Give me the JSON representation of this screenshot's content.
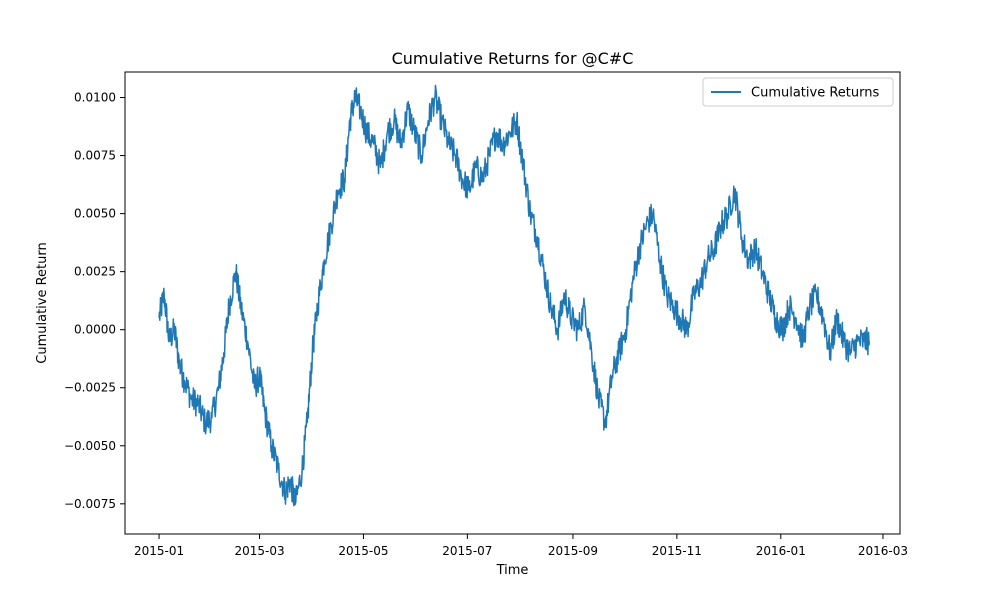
{
  "chart_data": {
    "type": "line",
    "title": "Cumulative Returns for @C#C",
    "xlabel": "Time",
    "ylabel": "Cumulative Return",
    "xlim": [
      "2014-12-12",
      "2016-03-11"
    ],
    "ylim": [
      -0.0088,
      0.0111
    ],
    "grid": false,
    "legend_position": "top-right",
    "x_ticks": [
      "2015-01",
      "2015-03",
      "2015-05",
      "2015-07",
      "2015-09",
      "2015-11",
      "2016-01",
      "2016-03"
    ],
    "y_ticks": [
      -0.0075,
      -0.005,
      -0.0025,
      0.0,
      0.0025,
      0.005,
      0.0075,
      0.01
    ],
    "y_tick_labels": [
      "−0.0075",
      "−0.0050",
      "−0.0025",
      "0.0000",
      "0.0025",
      "0.0050",
      "0.0075",
      "0.0100"
    ],
    "series": [
      {
        "name": "Cumulative Returns",
        "color": "#1f77b4",
        "x": [
          "2015-01-01",
          "2015-01-04",
          "2015-01-07",
          "2015-01-10",
          "2015-01-13",
          "2015-01-16",
          "2015-01-20",
          "2015-01-24",
          "2015-01-28",
          "2015-02-01",
          "2015-02-05",
          "2015-02-08",
          "2015-02-11",
          "2015-02-15",
          "2015-02-18",
          "2015-02-22",
          "2015-02-26",
          "2015-03-01",
          "2015-03-04",
          "2015-03-08",
          "2015-03-12",
          "2015-03-16",
          "2015-03-19",
          "2015-03-22",
          "2015-03-26",
          "2015-03-29",
          "2015-04-01",
          "2015-04-04",
          "2015-04-08",
          "2015-04-12",
          "2015-04-16",
          "2015-04-20",
          "2015-04-23",
          "2015-04-26",
          "2015-04-29",
          "2015-05-03",
          "2015-05-07",
          "2015-05-11",
          "2015-05-15",
          "2015-05-19",
          "2015-05-23",
          "2015-05-27",
          "2015-05-31",
          "2015-06-04",
          "2015-06-08",
          "2015-06-12",
          "2015-06-16",
          "2015-06-20",
          "2015-06-24",
          "2015-06-28",
          "2015-07-02",
          "2015-07-06",
          "2015-07-10",
          "2015-07-14",
          "2015-07-18",
          "2015-07-22",
          "2015-07-26",
          "2015-07-30",
          "2015-08-03",
          "2015-08-07",
          "2015-08-11",
          "2015-08-15",
          "2015-08-19",
          "2015-08-23",
          "2015-08-27",
          "2015-08-31",
          "2015-09-04",
          "2015-09-08",
          "2015-09-12",
          "2015-09-16",
          "2015-09-20",
          "2015-09-24",
          "2015-09-28",
          "2015-10-02",
          "2015-10-06",
          "2015-10-10",
          "2015-10-14",
          "2015-10-18",
          "2015-10-22",
          "2015-10-26",
          "2015-10-30",
          "2015-11-03",
          "2015-11-07",
          "2015-11-11",
          "2015-11-15",
          "2015-11-19",
          "2015-11-23",
          "2015-11-27",
          "2015-12-01",
          "2015-12-05",
          "2015-12-09",
          "2015-12-13",
          "2015-12-17",
          "2015-12-21",
          "2015-12-25",
          "2015-12-29",
          "2016-01-02",
          "2016-01-06",
          "2016-01-10",
          "2016-01-14",
          "2016-01-18",
          "2016-01-22",
          "2016-01-26",
          "2016-01-30",
          "2016-02-03",
          "2016-02-07",
          "2016-02-11",
          "2016-02-15",
          "2016-02-19",
          "2016-02-22"
        ],
        "y": [
          0.0005,
          0.0015,
          -0.0005,
          0.0,
          -0.0015,
          -0.0022,
          -0.003,
          -0.0032,
          -0.004,
          -0.0038,
          -0.0025,
          -0.001,
          0.001,
          0.0025,
          0.001,
          -0.0005,
          -0.0025,
          -0.002,
          -0.0035,
          -0.005,
          -0.006,
          -0.007,
          -0.0065,
          -0.0075,
          -0.006,
          -0.004,
          -0.001,
          0.001,
          0.003,
          0.0045,
          0.006,
          0.0065,
          0.009,
          0.01,
          0.0095,
          0.0085,
          0.008,
          0.007,
          0.0085,
          0.009,
          0.008,
          0.0095,
          0.0085,
          0.0075,
          0.009,
          0.01,
          0.009,
          0.008,
          0.0075,
          0.0065,
          0.006,
          0.007,
          0.0065,
          0.0075,
          0.0085,
          0.008,
          0.0085,
          0.009,
          0.007,
          0.005,
          0.004,
          0.0025,
          0.001,
          0.0,
          0.0015,
          0.0005,
          0.0,
          0.001,
          -0.001,
          -0.003,
          -0.004,
          -0.002,
          -0.001,
          0.0,
          0.002,
          0.0035,
          0.0045,
          0.005,
          0.003,
          0.0015,
          0.001,
          0.0005,
          0.0,
          0.0015,
          0.002,
          0.003,
          0.0035,
          0.0045,
          0.005,
          0.006,
          0.004,
          0.003,
          0.0035,
          0.0025,
          0.0015,
          0.0005,
          0.0,
          0.001,
          0.0005,
          -0.0005,
          0.001,
          0.0015,
          0.0005,
          -0.001,
          0.0005,
          -0.0005,
          -0.001,
          -0.0005,
          -0.0005,
          -0.0005
        ]
      }
    ]
  }
}
